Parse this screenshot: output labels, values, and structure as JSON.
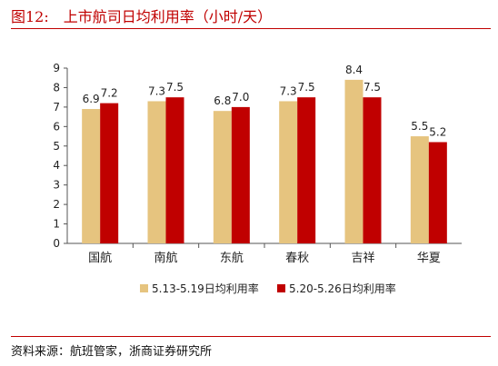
{
  "header": {
    "figure_number": "图12:",
    "title": "上市航司日均利用率（小时/天）"
  },
  "source": "资料来源：航班管家，浙商证券研究所",
  "chart_data": {
    "type": "bar",
    "categories": [
      "国航",
      "南航",
      "东航",
      "春秋",
      "吉祥",
      "华夏"
    ],
    "series": [
      {
        "name": "5.13-5.19日均利用率",
        "values": [
          6.9,
          7.3,
          6.8,
          7.3,
          8.4,
          5.5
        ],
        "labels": [
          "6.9",
          "7.3",
          "6.8",
          "7.3",
          "8.4",
          "5.5"
        ],
        "color": "#e6c47f"
      },
      {
        "name": "5.20-5.26日均利用率",
        "values": [
          7.2,
          7.5,
          7.0,
          7.5,
          7.5,
          5.2
        ],
        "labels": [
          "7.2",
          "7.5",
          "7.0",
          "7.5",
          "7.5",
          "5.2"
        ],
        "color": "#c00000"
      }
    ],
    "ylim": [
      0,
      9
    ],
    "yticks": [
      "0",
      "1",
      "2",
      "3",
      "4",
      "5",
      "6",
      "7",
      "8",
      "9"
    ],
    "xlabel": "",
    "ylabel": "",
    "grid": false,
    "legend": "bottom"
  }
}
